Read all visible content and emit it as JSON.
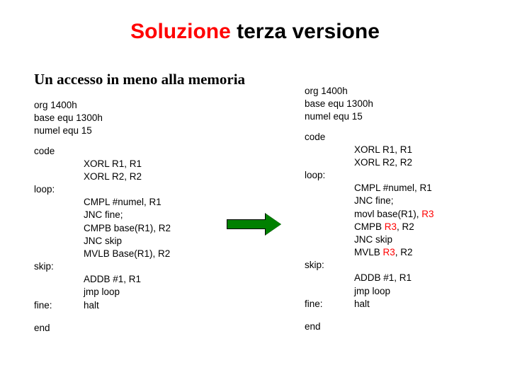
{
  "title": {
    "part1": "Soluzione",
    "part2": " terza versione"
  },
  "subtitle": "Un accesso in meno alla memoria",
  "left": {
    "header": [
      "org 1400h",
      "base equ 1300h",
      "numel equ 15"
    ],
    "code_label": "code",
    "code_lines": [
      "XORL R1, R1",
      "XORL R2, R2"
    ],
    "loop_label": "loop:",
    "loop_lines": [
      "CMPL #numel, R1",
      "JNC fine;",
      "CMPB base(R1), R2",
      "JNC skip",
      "MVLB Base(R1), R2"
    ],
    "skip_label": "skip:",
    "skip_lines": [
      "ADDB #1, R1",
      "jmp loop"
    ],
    "fine_label": "fine:",
    "fine_lines": [
      "halt"
    ],
    "end_label": "end"
  },
  "right": {
    "header": [
      "org 1400h",
      "base equ 1300h",
      "numel equ 15"
    ],
    "code_label": "code",
    "code_lines": [
      "XORL R1, R1",
      "XORL R2, R2"
    ],
    "loop_label": "loop:",
    "loop_lines_html": [
      "CMPL #numel, R1",
      "JNC fine;",
      "movl base(R1), <span class=\"r3\">R3</span>",
      "CMPB <span class=\"r3\">R3</span>, R2",
      "JNC skip",
      "MVLB <span class=\"r3\">R3</span>, R2"
    ],
    "skip_label": "skip:",
    "skip_lines": [
      "ADDB #1, R1",
      "jmp loop"
    ],
    "fine_label": "fine:",
    "fine_lines": [
      "halt"
    ],
    "end_label": "end"
  },
  "colors": {
    "red": "#ff0000",
    "green": "#008000",
    "black": "#000000",
    "bg": "#ffffff"
  }
}
